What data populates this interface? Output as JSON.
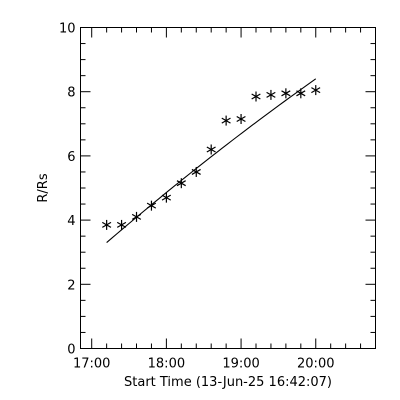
{
  "chart_data": {
    "type": "scatter",
    "xlabel": "Start Time (13-Jun-25 16:42:07)",
    "ylabel": "R/Rs",
    "x_tick_labels": [
      "17:00",
      "18:00",
      "19:00",
      "20:00"
    ],
    "y_tick_labels": [
      "0",
      "2",
      "4",
      "6",
      "8",
      "10"
    ],
    "xlim": [
      "16:51",
      "20:48"
    ],
    "ylim": [
      0,
      10
    ],
    "grid": false,
    "series": [
      {
        "marker": "asterisk",
        "x": [
          "17:12",
          "17:24",
          "17:36",
          "17:48",
          "18:00",
          "18:12",
          "18:24",
          "18:36",
          "18:48",
          "19:00",
          "19:12",
          "19:24",
          "19:36",
          "19:48",
          "20:00"
        ],
        "y": [
          3.85,
          3.85,
          4.1,
          4.45,
          4.7,
          5.15,
          5.5,
          6.2,
          7.1,
          7.15,
          7.85,
          7.9,
          7.95,
          7.95,
          8.05
        ]
      },
      {
        "style": "line",
        "x": [
          "17:12",
          "20:00"
        ],
        "y": [
          3.3,
          8.4
        ]
      }
    ]
  }
}
